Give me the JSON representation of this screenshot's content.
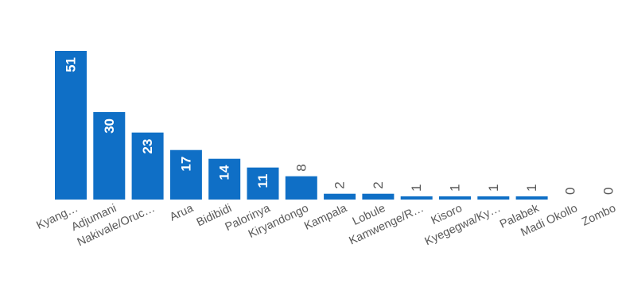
{
  "chart_data": {
    "type": "bar",
    "categories": [
      "Kyang…",
      "Adjumani",
      "Nakivale/Oruc…",
      "Arua",
      "Bidibidi",
      "Palorinya",
      "Kiryandongo",
      "Kampala",
      "Lobule",
      "Kamwenge/R…",
      "Kisoro",
      "Kyegegwa/Ky…",
      "Palabek",
      "Madi Okollo",
      "Zombo"
    ],
    "values": [
      51,
      30,
      23,
      17,
      14,
      11,
      8,
      2,
      2,
      1,
      1,
      1,
      1,
      0,
      0
    ],
    "ylim": [
      0,
      51
    ],
    "grid": false,
    "colors": {
      "bar": "#0f6fc6",
      "label_inside": "#ffffff",
      "label_outside": "#595959",
      "axis_text": "#595959",
      "baseline": "#d0d0d0"
    }
  }
}
